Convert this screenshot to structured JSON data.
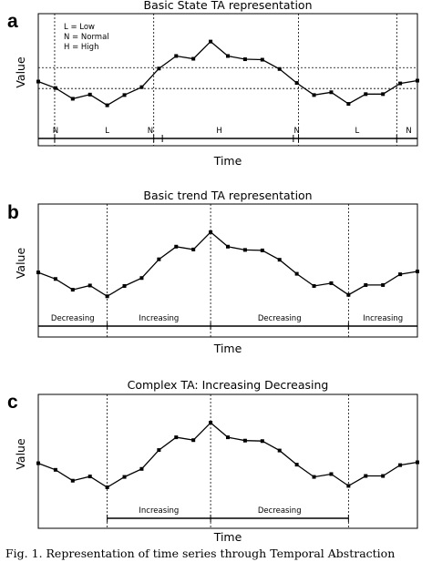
{
  "chart_data": [
    {
      "type": "line",
      "panel_letter": "a",
      "title": "Basic State TA representation",
      "xlabel": "Time",
      "ylabel": "Value",
      "x": [
        1,
        2,
        3,
        4,
        5,
        6,
        7,
        8,
        9,
        10,
        11,
        12,
        13,
        14,
        15,
        16,
        17,
        18,
        19,
        20,
        21,
        22,
        23
      ],
      "values": [
        3.3,
        2.6,
        1.45,
        1.9,
        0.75,
        1.85,
        2.7,
        4.7,
        6.05,
        5.75,
        7.6,
        6.05,
        5.7,
        5.65,
        4.65,
        3.15,
        1.85,
        2.15,
        0.9,
        1.95,
        1.95,
        3.1,
        3.4
      ],
      "ylim": [
        -3.6,
        10.6
      ],
      "thresholds": [
        2.55,
        4.8
      ],
      "legend": [
        "L = Low",
        "N = Normal",
        "H = High"
      ],
      "legend_position": "top-left",
      "segments": [
        {
          "label": "N",
          "from": 1,
          "to": 3
        },
        {
          "label": "L",
          "from": 3,
          "to": 7
        },
        {
          "label": "N",
          "from": 7,
          "to": 8
        },
        {
          "label": "H",
          "from": 8,
          "to": 15
        },
        {
          "label": "N",
          "from": 15,
          "to": 17
        },
        {
          "label": "L",
          "from": 17,
          "to": 22
        },
        {
          "label": "N",
          "from": 22,
          "to": 23
        }
      ],
      "boundaries": [
        1.95,
        7.7,
        16.1,
        21.8
      ],
      "grid": false
    },
    {
      "type": "line",
      "panel_letter": "b",
      "title": "Basic trend TA representation",
      "xlabel": "Time",
      "ylabel": "Value",
      "x": [
        1,
        2,
        3,
        4,
        5,
        6,
        7,
        8,
        9,
        10,
        11,
        12,
        13,
        14,
        15,
        16,
        17,
        18,
        19,
        20,
        21,
        22,
        23
      ],
      "values": [
        3.3,
        2.6,
        1.45,
        1.9,
        0.75,
        1.85,
        2.7,
        4.7,
        6.05,
        5.75,
        7.6,
        6.05,
        5.7,
        5.65,
        4.65,
        3.15,
        1.85,
        2.15,
        0.9,
        1.95,
        1.95,
        3.1,
        3.4
      ],
      "ylim": [
        -3.6,
        10.6
      ],
      "segments": [
        {
          "label": "Decreasing",
          "from": 1,
          "to": 5
        },
        {
          "label": "Increasing",
          "from": 5,
          "to": 11
        },
        {
          "label": "Decreasing",
          "from": 11,
          "to": 19
        },
        {
          "label": "Increasing",
          "from": 19,
          "to": 23
        }
      ],
      "boundaries": [
        5,
        11,
        19
      ],
      "grid": false
    },
    {
      "type": "line",
      "panel_letter": "c",
      "title": "Complex TA: Increasing Decreasing",
      "xlabel": "Time",
      "ylabel": "Value",
      "x": [
        1,
        2,
        3,
        4,
        5,
        6,
        7,
        8,
        9,
        10,
        11,
        12,
        13,
        14,
        15,
        16,
        17,
        18,
        19,
        20,
        21,
        22,
        23
      ],
      "values": [
        3.3,
        2.6,
        1.45,
        1.9,
        0.75,
        1.85,
        2.7,
        4.7,
        6.05,
        5.75,
        7.6,
        6.05,
        5.7,
        5.65,
        4.65,
        3.15,
        1.85,
        2.15,
        0.9,
        1.95,
        1.95,
        3.1,
        3.4
      ],
      "ylim": [
        -3.6,
        10.6
      ],
      "segments": [
        {
          "label": "Increasing",
          "from": 5,
          "to": 11
        },
        {
          "label": "Decreasing",
          "from": 11,
          "to": 19
        }
      ],
      "boundaries": [
        5,
        11,
        19
      ],
      "grid": false
    }
  ],
  "caption": "Fig. 1. Representation of time series through Temporal Abstraction"
}
